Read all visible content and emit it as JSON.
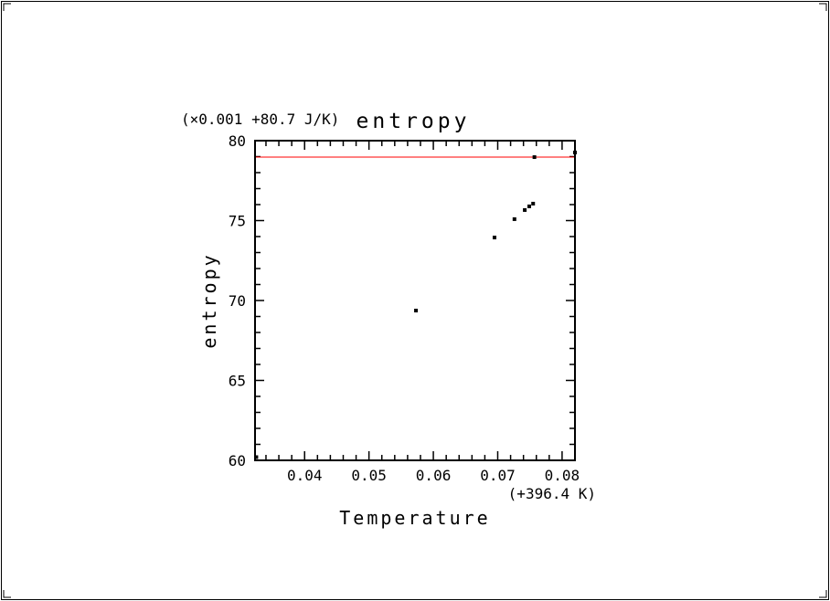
{
  "chart_data": {
    "type": "scatter",
    "title": "entropy",
    "xlabel": "Temperature",
    "ylabel": "entropy",
    "x_offset_label": "(+396.4 K)",
    "y_offset_label": "(×0.001 +80.7 J/K)",
    "xlim": [
      0.0323,
      0.082
    ],
    "ylim": [
      60,
      80
    ],
    "x_ticks": [
      0.04,
      0.05,
      0.06,
      0.07,
      0.08
    ],
    "x_tick_labels": [
      "0.04",
      "0.05",
      "0.06",
      "0.07",
      "0.08"
    ],
    "x_minor_step": 0.002,
    "y_ticks": [
      60,
      65,
      70,
      75,
      80
    ],
    "y_tick_labels": [
      "60",
      "65",
      "70",
      "75",
      "80"
    ],
    "y_minor_step": 1,
    "grid": false,
    "points": [
      {
        "x": 0.0325,
        "y": 60.2
      },
      {
        "x": 0.0573,
        "y": 69.37
      },
      {
        "x": 0.0695,
        "y": 73.94
      },
      {
        "x": 0.0726,
        "y": 75.09
      },
      {
        "x": 0.0742,
        "y": 75.66
      },
      {
        "x": 0.0749,
        "y": 75.89
      },
      {
        "x": 0.0755,
        "y": 76.06
      },
      {
        "x": 0.0757,
        "y": 78.97
      },
      {
        "x": 0.082,
        "y": 79.26
      }
    ],
    "reference_line": {
      "y": 78.97,
      "color": "#ff0000"
    },
    "point_color": "#000000"
  }
}
